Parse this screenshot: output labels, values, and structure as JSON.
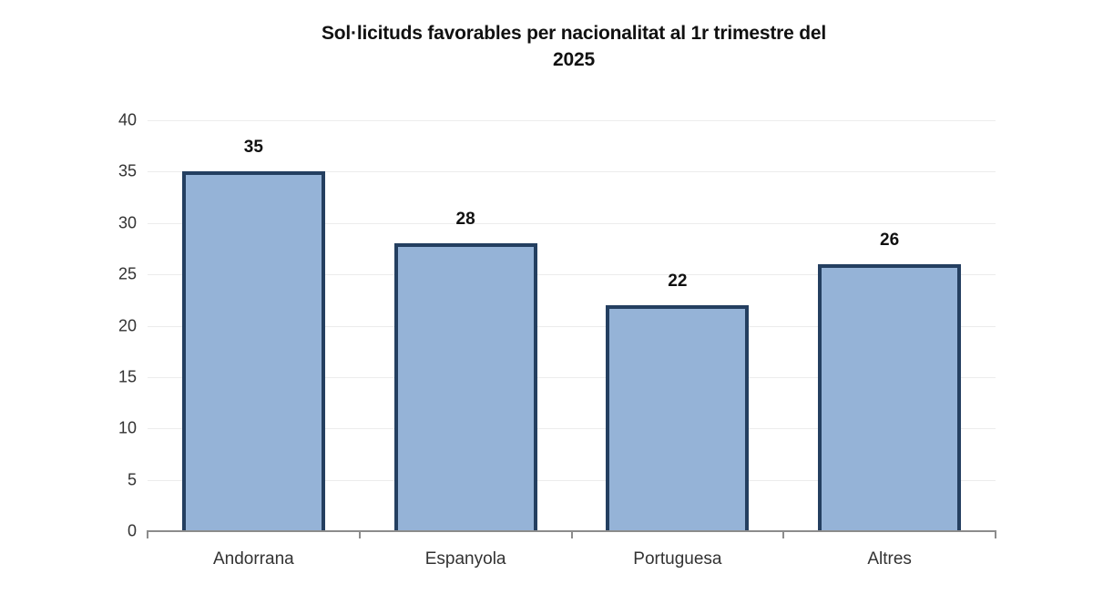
{
  "chart_data": {
    "type": "bar",
    "title": "Sol·licituds favorables per nacionalitat al 1r trimestre del 2025",
    "title_lines": [
      "Sol·licituds favorables per nacionalitat al 1r trimestre del",
      "2025"
    ],
    "categories": [
      "Andorrana",
      "Espanyola",
      "Portuguesa",
      "Altres"
    ],
    "values": [
      35,
      28,
      22,
      26
    ],
    "data_labels": [
      "35",
      "28",
      "22",
      "26"
    ],
    "xlabel": "",
    "ylabel": "",
    "ylim": [
      0,
      40
    ],
    "yticks": [
      0,
      5,
      10,
      15,
      20,
      25,
      30,
      35,
      40
    ],
    "ytick_labels": [
      "0",
      "5",
      "10",
      "15",
      "20",
      "25",
      "30",
      "35",
      "40"
    ],
    "grid": true,
    "legend": null,
    "colors": {
      "bar_fill": "#95b3d7",
      "bar_border": "#243f60",
      "axis": "#8c8c8c",
      "grid": "#ececec"
    }
  }
}
